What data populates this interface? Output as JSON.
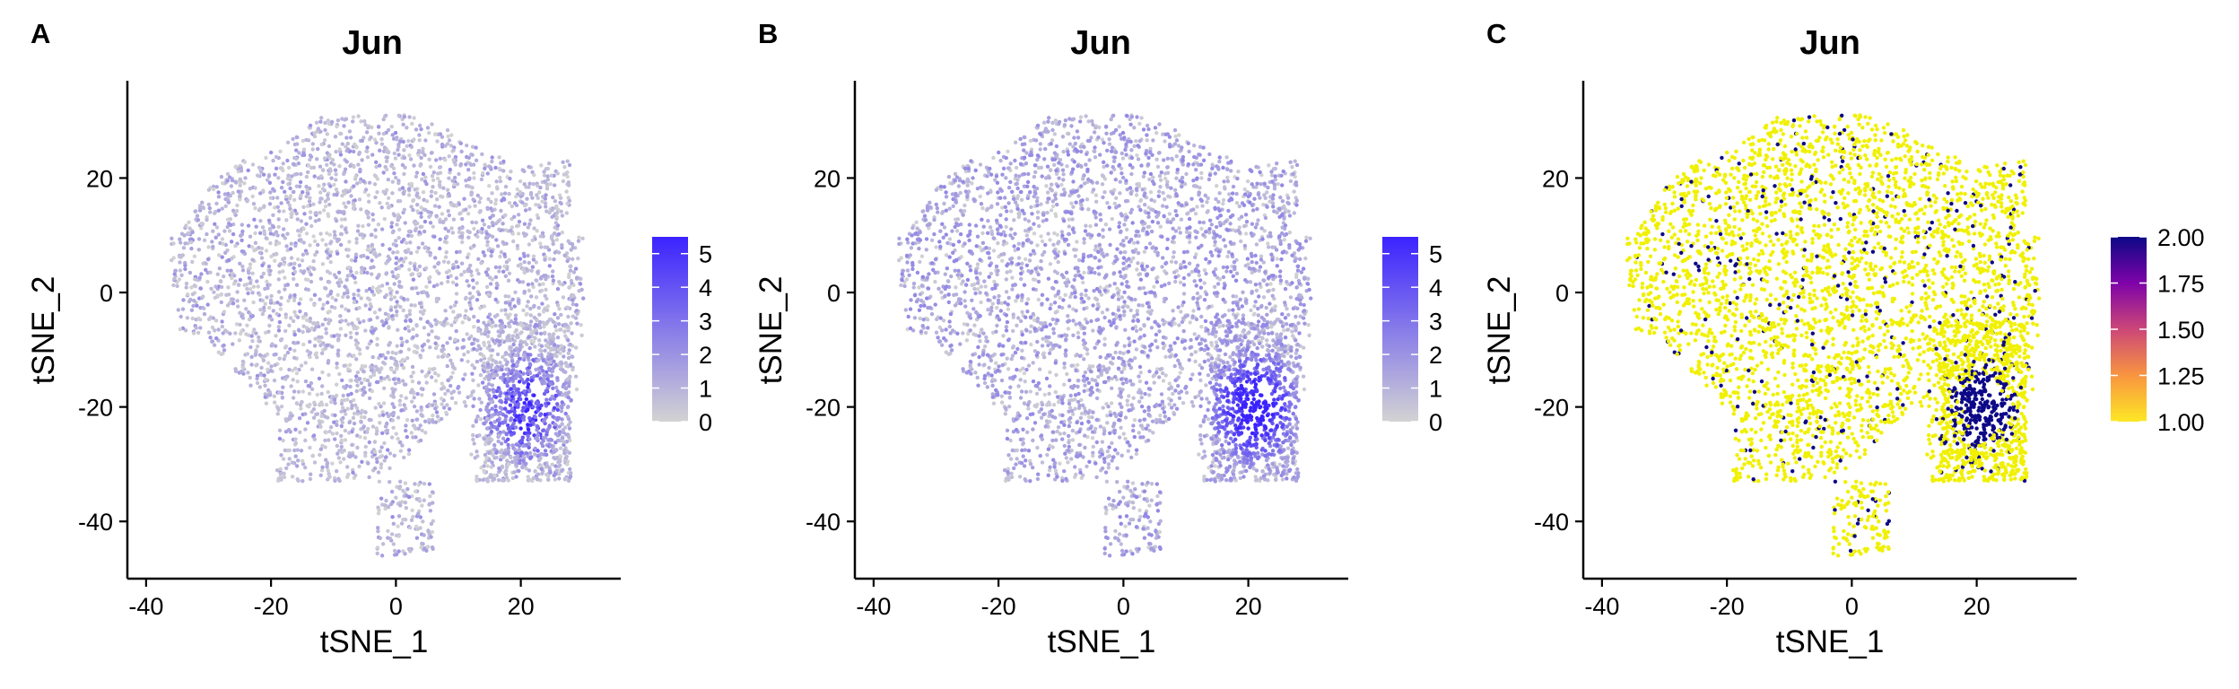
{
  "chart_data": [
    {
      "panel_label": "A",
      "type": "scatter",
      "title": "Jun",
      "xlabel": "tSNE_1",
      "ylabel": "tSNE_2",
      "xlim": [
        -43,
        36
      ],
      "ylim": [
        -50,
        37
      ],
      "xticks": [
        -40,
        -20,
        0,
        20
      ],
      "xtick_labels": [
        "-40",
        "-20",
        "0",
        "20"
      ],
      "yticks": [
        -40,
        -20,
        0,
        20
      ],
      "ytick_labels": [
        "-40",
        "-20",
        "0",
        "20"
      ],
      "grid": false,
      "legend": {
        "type": "colorbar",
        "position": "right",
        "range": [
          0,
          5.5
        ],
        "ticks": [
          0,
          1,
          2,
          3,
          4,
          5
        ],
        "tick_labels": [
          "0",
          "1",
          "2",
          "3",
          "4",
          "5"
        ],
        "colors": [
          "#d3d3d3",
          "#3b23ff"
        ]
      },
      "point_color_low": "#d3d3d3",
      "point_color_high": "#3b23ff",
      "expression_summary": "most cells low/zero expression; high expression cluster near tSNE_1 20, tSNE_2 -20",
      "approx_points": 3600
    },
    {
      "panel_label": "B",
      "type": "scatter",
      "title": "Jun",
      "xlabel": "tSNE_1",
      "ylabel": "tSNE_2",
      "xlim": [
        -43,
        36
      ],
      "ylim": [
        -50,
        37
      ],
      "xticks": [
        -40,
        -20,
        0,
        20
      ],
      "xtick_labels": [
        "-40",
        "-20",
        "0",
        "20"
      ],
      "yticks": [
        -40,
        -20,
        0,
        20
      ],
      "ytick_labels": [
        "-40",
        "-20",
        "0",
        "20"
      ],
      "grid": false,
      "legend": {
        "type": "colorbar",
        "position": "right",
        "range": [
          0,
          5.5
        ],
        "ticks": [
          0,
          1,
          2,
          3,
          4,
          5
        ],
        "tick_labels": [
          "0",
          "1",
          "2",
          "3",
          "4",
          "5"
        ],
        "colors": [
          "#d3d3d3",
          "#3b23ff"
        ]
      },
      "point_color_low": "#d3d3d3",
      "point_color_high": "#3b23ff",
      "expression_summary": "expressing cells plotted on top; widespread moderate expression, high cluster near tSNE_1 20, tSNE_2 -20",
      "approx_points": 3600
    },
    {
      "panel_label": "C",
      "type": "scatter",
      "title": "Jun",
      "xlabel": "tSNE_1",
      "ylabel": "tSNE_2",
      "xlim": [
        -43,
        36
      ],
      "ylim": [
        -50,
        37
      ],
      "xticks": [
        -40,
        -20,
        0,
        20
      ],
      "xtick_labels": [
        "-40",
        "-20",
        "0",
        "20"
      ],
      "yticks": [
        -40,
        -20,
        0,
        20
      ],
      "ytick_labels": [
        "-40",
        "-20",
        "0",
        "20"
      ],
      "grid": false,
      "legend": {
        "type": "colorbar",
        "position": "right",
        "range": [
          1.0,
          2.0
        ],
        "ticks": [
          1.0,
          1.25,
          1.5,
          1.75,
          2.0
        ],
        "tick_labels": [
          "1.00",
          "1.25",
          "1.50",
          "1.75",
          "2.00"
        ],
        "colors": [
          "#fde725",
          "#f89540",
          "#cc4778",
          "#7e03a8",
          "#0d0887"
        ]
      },
      "point_color_low": "#f0f000",
      "point_color_high": "#0d0887",
      "expression_summary": "binary: most cells value 1 (yellow), subset value 2 (dark navy) concentrated near tSNE_1 20, tSNE_2 -20",
      "approx_points": 3600
    }
  ]
}
